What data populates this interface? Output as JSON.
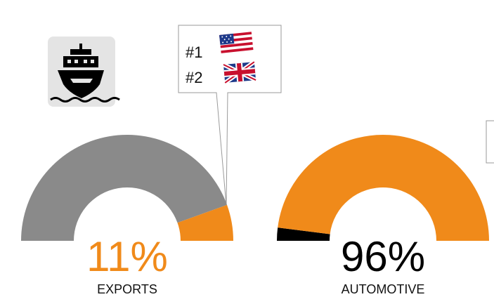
{
  "callout": {
    "rank1": "#1",
    "rank2": "#2",
    "flag1_icon": "us-flag-icon",
    "flag2_icon": "uk-flag-icon"
  },
  "ship_icon": "cargo-ship-icon",
  "colors": {
    "accent": "#F08A1A",
    "remainder_exports": "#8A8A8A",
    "remainder_automotive": "#000000",
    "icon_bg": "#E4E4E4"
  },
  "chart_data": [
    {
      "type": "pie",
      "subtype": "semicircle-gauge",
      "label": "EXPORTS",
      "percent_label": "11%",
      "value": 11,
      "max": 100,
      "highlight_color": "#F08A1A",
      "remainder_color": "#8A8A8A",
      "percent_text_color": "#F08A1A"
    },
    {
      "type": "pie",
      "subtype": "semicircle-gauge",
      "label": "AUTOMOTIVE",
      "percent_label": "96%",
      "value": 96,
      "max": 100,
      "highlight_color": "#F08A1A",
      "remainder_color": "#000000",
      "percent_text_color": "#000000"
    }
  ]
}
